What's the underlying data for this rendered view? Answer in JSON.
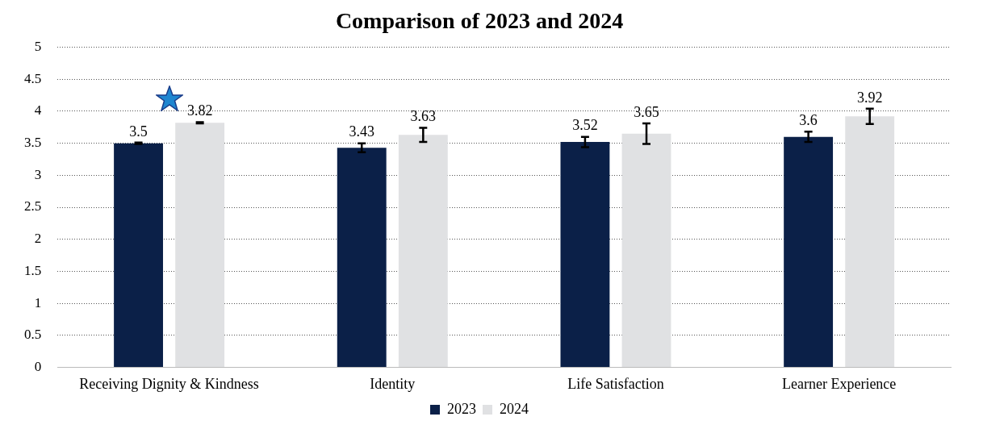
{
  "chart_data": {
    "type": "bar",
    "title": "Comparison of 2023 and 2024",
    "categories": [
      "Receiving Dignity & Kindness",
      "Identity",
      "Life Satisfaction",
      "Learner Experience"
    ],
    "series": [
      {
        "name": "2023",
        "color": "#0b2048",
        "values": [
          3.5,
          3.43,
          3.52,
          3.6
        ],
        "errors": [
          0.01,
          0.07,
          0.08,
          0.08
        ]
      },
      {
        "name": "2024",
        "color": "#e0e1e3",
        "values": [
          3.82,
          3.63,
          3.65,
          3.92
        ],
        "errors": [
          0.01,
          0.11,
          0.16,
          0.12
        ]
      }
    ],
    "ylim": [
      0,
      5
    ],
    "yticks": [
      0,
      0.5,
      1,
      1.5,
      2,
      2.5,
      3,
      3.5,
      4,
      4.5,
      5
    ],
    "grid": "y",
    "legend": "bottom",
    "data_labels": true
  }
}
